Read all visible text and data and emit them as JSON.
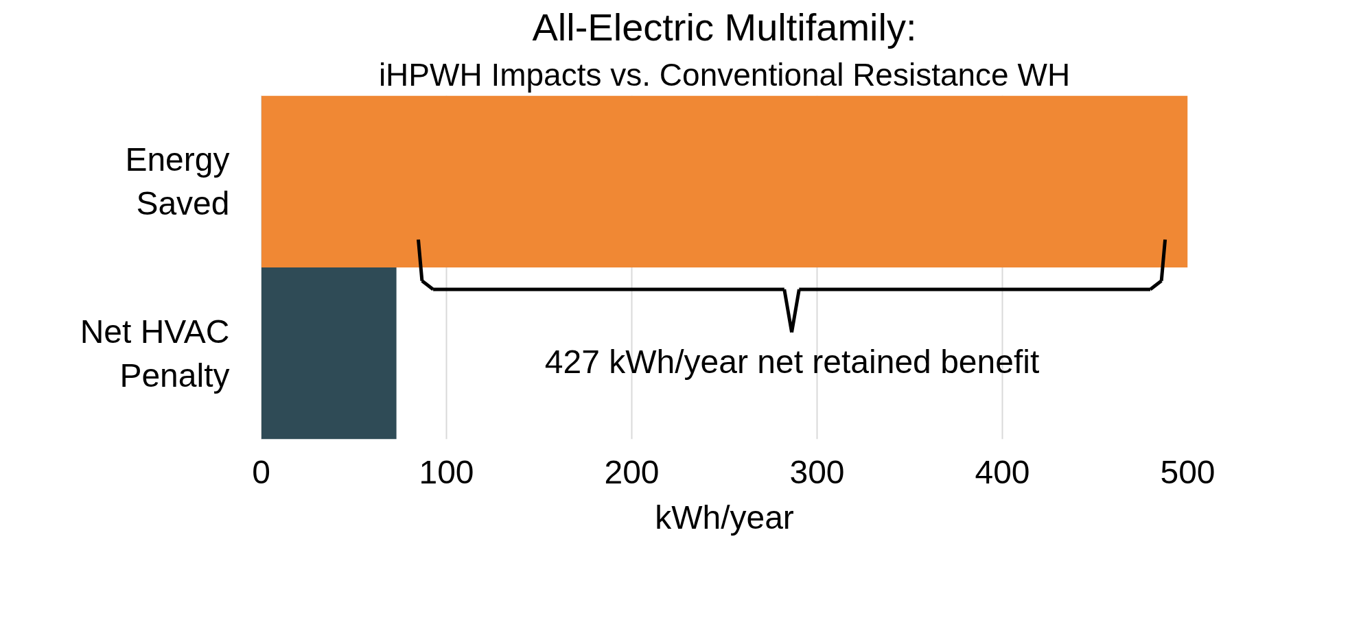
{
  "chart_data": {
    "type": "bar",
    "orientation": "horizontal",
    "title": "All-Electric Multifamily:",
    "subtitle": "iHPWH Impacts vs. Conventional Resistance WH",
    "xlabel": "kWh/year",
    "categories": [
      "Energy Saved",
      "Net HVAC Penalty"
    ],
    "values": [
      500,
      73
    ],
    "colors": [
      "#f08834",
      "#2f4b56"
    ],
    "xlim": [
      0,
      500
    ],
    "xticks": [
      0,
      100,
      200,
      300,
      400,
      500
    ],
    "grid": "x",
    "annotations": [
      "427 kWh/year net retained benefit"
    ]
  }
}
